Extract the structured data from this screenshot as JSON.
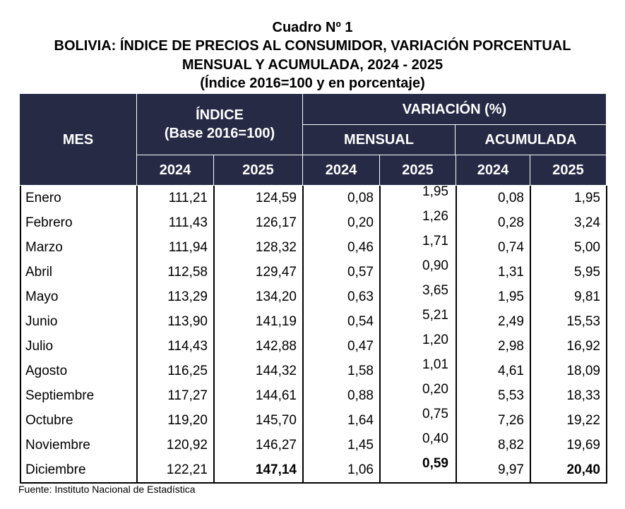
{
  "title": {
    "line1": "Cuadro Nº 1",
    "line2": "BOLIVIA: ÍNDICE DE PRECIOS AL CONSUMIDOR, VARIACIÓN PORCENTUAL",
    "line3": "MENSUAL Y ACUMULADA, 2024 - 2025",
    "line4": "(Índice 2016=100 y en porcentaje)"
  },
  "header": {
    "mes": "MES",
    "indice": "ÍNDICE",
    "indice_base": "(Base 2016=100)",
    "variacion": "VARIACIÓN (%)",
    "mensual": "MENSUAL",
    "acumulada": "ACUMULADA",
    "years": [
      "2024",
      "2025",
      "2024",
      "2025",
      "2024",
      "2025"
    ]
  },
  "table": {
    "rows": [
      [
        "Enero",
        "111,21",
        "124,59",
        "0,08",
        "1,95",
        "0,08",
        "1,95"
      ],
      [
        "Febrero",
        "111,43",
        "126,17",
        "0,20",
        "1,26",
        "0,28",
        "3,24"
      ],
      [
        "Marzo",
        "111,94",
        "128,32",
        "0,46",
        "1,71",
        "0,74",
        "5,00"
      ],
      [
        "Abril",
        "112,58",
        "129,47",
        "0,57",
        "0,90",
        "1,31",
        "5,95"
      ],
      [
        "Mayo",
        "113,29",
        "134,20",
        "0,63",
        "3,65",
        "1,95",
        "9,81"
      ],
      [
        "Junio",
        "113,90",
        "141,19",
        "0,54",
        "5,21",
        "2,49",
        "15,53"
      ],
      [
        "Julio",
        "114,43",
        "142,88",
        "0,47",
        "1,20",
        "2,98",
        "16,92"
      ],
      [
        "Agosto",
        "116,25",
        "144,32",
        "1,58",
        "1,01",
        "4,61",
        "18,09"
      ],
      [
        "Septiembre",
        "117,27",
        "144,61",
        "0,88",
        "0,20",
        "5,53",
        "18,33"
      ],
      [
        "Octubre",
        "119,20",
        "145,70",
        "1,64",
        "0,75",
        "7,26",
        "19,22"
      ],
      [
        "Noviembre",
        "120,92",
        "146,27",
        "1,45",
        "0,40",
        "8,82",
        "19,69"
      ],
      [
        "Diciembre",
        "122,21",
        "147,14",
        "1,06",
        "0,59",
        "9,97",
        "20,40"
      ]
    ]
  },
  "footer": {
    "source": "Fuente: Instituto Nacional de Estadística"
  }
}
